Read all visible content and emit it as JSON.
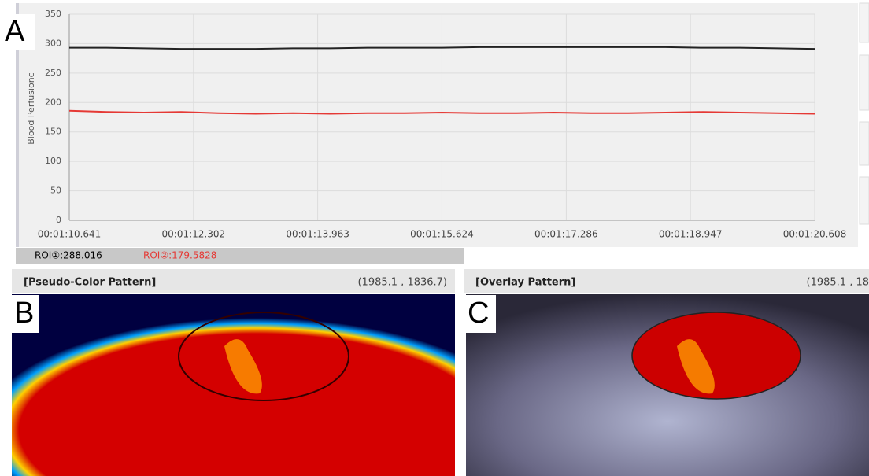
{
  "panels": {
    "a": "A",
    "b": "B",
    "c": "C"
  },
  "chart_data": {
    "type": "line",
    "y_label": "Blood Perfusionc",
    "grid": true,
    "x": [
      70.641,
      71.139,
      71.638,
      72.136,
      72.634,
      73.133,
      73.631,
      74.13,
      74.628,
      75.126,
      75.625,
      76.123,
      76.621,
      77.12,
      77.618,
      78.116,
      78.615,
      79.113,
      79.611,
      80.11,
      80.608
    ],
    "series": [
      {
        "color": "#222222",
        "values": [
          293,
          293,
          292,
          291,
          291,
          291,
          292,
          292,
          293,
          293,
          293,
          294,
          294,
          294,
          294,
          294,
          294,
          293,
          293,
          292,
          291
        ]
      },
      {
        "color": "#e53935",
        "values": [
          186,
          184,
          183,
          184,
          182,
          181,
          182,
          181,
          182,
          182,
          183,
          182,
          182,
          183,
          182,
          182,
          183,
          184,
          183,
          182,
          181
        ]
      }
    ],
    "xlim": [
      70.641,
      80.608
    ],
    "xticks": [
      {
        "value": 70.641,
        "label": "00:01:10.641"
      },
      {
        "value": 72.302,
        "label": "00:01:12.302"
      },
      {
        "value": 73.963,
        "label": "00:01:13.963"
      },
      {
        "value": 75.624,
        "label": "00:01:15.624"
      },
      {
        "value": 77.286,
        "label": "00:01:17.286"
      },
      {
        "value": 78.947,
        "label": "00:01:18.947"
      },
      {
        "value": 80.608,
        "label": "00:01:20.608"
      }
    ],
    "ylim": [
      0,
      350
    ],
    "yticks": [
      0,
      50,
      100,
      150,
      200,
      250,
      300,
      350
    ]
  },
  "status": [
    "ROI①:288.016",
    "ROI②:179.5828"
  ],
  "pseudo_color": {
    "title": "[Pseudo-Color Pattern]",
    "coords": "(1985.1 , 1836.7)"
  },
  "overlay": {
    "title": "[Overlay Pattern]",
    "coords": "(1985.1 , 18"
  }
}
